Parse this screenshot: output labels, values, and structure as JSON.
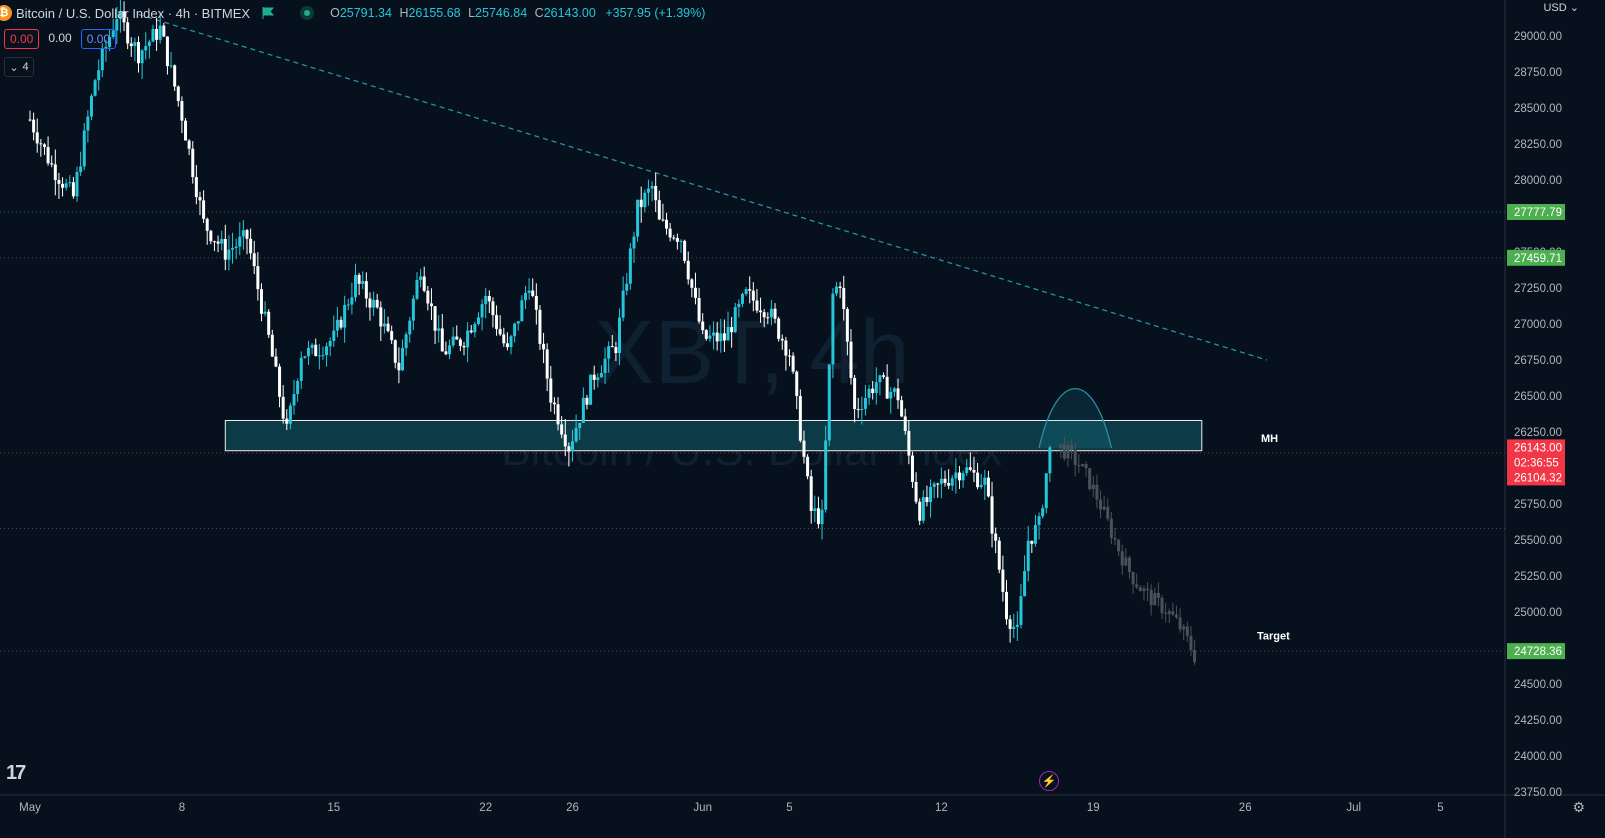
{
  "header": {
    "coin_symbol": "₿",
    "symbol_text": "Bitcoin / U.S. Dollar Index · 4h · BITMEX",
    "ohlc": {
      "o_label": "O",
      "o": "25791.34",
      "h_label": "H",
      "h": "26155.68",
      "l_label": "L",
      "l": "25746.84",
      "c_label": "C",
      "c": "26143.00",
      "change": "+357.95 (+1.39%)"
    }
  },
  "indicators": {
    "value_red": "0.00",
    "value_plain": "0.00",
    "value_blue": "0.00",
    "collapse_count": "4",
    "collapse_icon": "chevron-down-icon"
  },
  "currency": "USD",
  "watermark": {
    "symbol": "XBT, 4h",
    "name": "Bitcoin / U.S. Dollar Index"
  },
  "annotations": {
    "mh": "MH",
    "target": "Target"
  },
  "colors": {
    "background": "#06111d",
    "up": "#26c6da",
    "down": "#ffffff",
    "projection": "#4a5259",
    "zone": "#0c3a46",
    "trendline": "#2a8fa3",
    "level_green": "#4caf50",
    "last_price": "#f23645"
  },
  "chart_data": {
    "type": "candlestick",
    "interval": "4h",
    "y_ticks": [
      "29000.00",
      "28750.00",
      "28500.00",
      "28250.00",
      "28000.00",
      "27750.00",
      "27500.00",
      "27250.00",
      "27000.00",
      "26750.00",
      "26500.00",
      "26250.00",
      "26000.00",
      "25750.00",
      "25500.00",
      "25250.00",
      "25000.00",
      "24750.00",
      "24500.00",
      "24250.00",
      "24000.00",
      "23750.00"
    ],
    "ylim": [
      23700,
      29200
    ],
    "x_ticks": [
      {
        "label": "May",
        "date": "2023-05-01"
      },
      {
        "label": "8",
        "date": "2023-05-08"
      },
      {
        "label": "15",
        "date": "2023-05-15"
      },
      {
        "label": "22",
        "date": "2023-05-22"
      },
      {
        "label": "26",
        "date": "2023-05-26"
      },
      {
        "label": "Jun",
        "date": "2023-06-01"
      },
      {
        "label": "5",
        "date": "2023-06-05"
      },
      {
        "label": "12",
        "date": "2023-06-12"
      },
      {
        "label": "19",
        "date": "2023-06-19"
      },
      {
        "label": "26",
        "date": "2023-06-26"
      },
      {
        "label": "Jul",
        "date": "2023-07-01"
      },
      {
        "label": "5",
        "date": "2023-07-05"
      }
    ],
    "levels": [
      {
        "price": "27777.79",
        "color": "#4caf50"
      },
      {
        "price": "27459.71",
        "color": "#4caf50"
      },
      {
        "price": "26104.32",
        "color": "#f23645"
      },
      {
        "price": "24728.36",
        "color": "#4caf50"
      },
      {
        "price": "25580.00",
        "color": "none"
      }
    ],
    "last_price": {
      "price": "26143.00",
      "countdown": "02:36:55"
    },
    "zone": {
      "from": "2023-05-10T00:00",
      "to": "2023-06-24T00:00",
      "low": 26120,
      "high": 26330
    },
    "trendline": {
      "from": {
        "date": "2023-05-06T00:00",
        "price": 29150
      },
      "to": {
        "date": "2023-06-27T00:00",
        "price": 26750
      }
    },
    "arc": {
      "from": "2023-06-16T12:00",
      "to": "2023-06-19T20:00",
      "base": 26140,
      "peak": 26480
    },
    "projection": {
      "from": "2023-06-17T12:00",
      "to": "2023-06-23T20:00",
      "start": 26140,
      "end": 24600
    },
    "waypoints": [
      [
        "2023-05-01T00:00",
        28420
      ],
      [
        "2023-05-02T00:00",
        28100
      ],
      [
        "2023-05-03T00:00",
        27880
      ],
      [
        "2023-05-04T00:00",
        28700
      ],
      [
        "2023-05-05T00:00",
        29150
      ],
      [
        "2023-05-06T00:00",
        28880
      ],
      [
        "2023-05-07T00:00",
        29050
      ],
      [
        "2023-05-08T00:00",
        28450
      ],
      [
        "2023-05-09T00:00",
        27700
      ],
      [
        "2023-05-10T00:00",
        27500
      ],
      [
        "2023-05-11T00:00",
        27600
      ],
      [
        "2023-05-12T00:00",
        26900
      ],
      [
        "2023-05-12T20:00",
        26250
      ],
      [
        "2023-05-13T12:00",
        26800
      ],
      [
        "2023-05-14T00:00",
        26800
      ],
      [
        "2023-05-15T00:00",
        26900
      ],
      [
        "2023-05-16T00:00",
        27300
      ],
      [
        "2023-05-17T00:00",
        27100
      ],
      [
        "2023-05-18T00:00",
        26700
      ],
      [
        "2023-05-19T00:00",
        27400
      ],
      [
        "2023-05-20T00:00",
        26800
      ],
      [
        "2023-05-21T00:00",
        26900
      ],
      [
        "2023-05-22T00:00",
        27200
      ],
      [
        "2023-05-23T00:00",
        26800
      ],
      [
        "2023-05-24T00:00",
        27300
      ],
      [
        "2023-05-25T00:00",
        26500
      ],
      [
        "2023-05-25T20:00",
        26150
      ],
      [
        "2023-05-27T00:00",
        26650
      ],
      [
        "2023-05-28T00:00",
        26850
      ],
      [
        "2023-05-29T00:00",
        27800
      ],
      [
        "2023-05-29T16:00",
        27950
      ],
      [
        "2023-05-30T00:00",
        27700
      ],
      [
        "2023-05-31T00:00",
        27600
      ],
      [
        "2023-06-01T00:00",
        26900
      ],
      [
        "2023-06-02T00:00",
        26900
      ],
      [
        "2023-06-03T00:00",
        27200
      ],
      [
        "2023-06-04T00:00",
        27100
      ],
      [
        "2023-06-05T00:00",
        26800
      ],
      [
        "2023-06-06T00:00",
        25700
      ],
      [
        "2023-06-06T12:00",
        25650
      ],
      [
        "2023-06-07T00:00",
        27200
      ],
      [
        "2023-06-07T08:00",
        27300
      ],
      [
        "2023-06-08T00:00",
        26400
      ],
      [
        "2023-06-09T00:00",
        26600
      ],
      [
        "2023-06-10T00:00",
        26500
      ],
      [
        "2023-06-10T20:00",
        25800
      ],
      [
        "2023-06-11T00:00",
        25700
      ],
      [
        "2023-06-12T00:00",
        25900
      ],
      [
        "2023-06-13T00:00",
        26000
      ],
      [
        "2023-06-14T00:00",
        25900
      ],
      [
        "2023-06-15T00:00",
        25000
      ],
      [
        "2023-06-15T12:00",
        24850
      ],
      [
        "2023-06-16T00:00",
        25500
      ],
      [
        "2023-06-16T12:00",
        25600
      ],
      [
        "2023-06-17T00:00",
        26143
      ]
    ]
  }
}
